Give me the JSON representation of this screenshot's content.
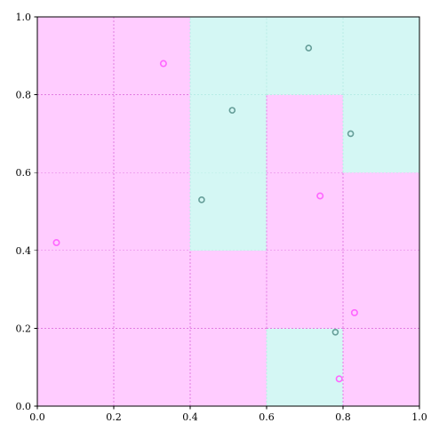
{
  "chart_data": {
    "type": "heatmap",
    "title": "",
    "xlabel": "",
    "ylabel": "",
    "xlim": [
      0,
      1
    ],
    "ylim": [
      0,
      1
    ],
    "x_ticks": [
      "0.0",
      "0.2",
      "0.4",
      "0.6",
      "0.8",
      "1.0"
    ],
    "y_ticks": [
      "0.0",
      "0.2",
      "0.4",
      "0.6",
      "0.8",
      "1.0"
    ],
    "grid": true,
    "colors": {
      "class_a_fill": "#ffccff",
      "class_b_fill": "#d4f7f4",
      "class_a_point": "#ff66ff",
      "class_b_point": "#669e99",
      "grid_a": "#e27ce2",
      "grid_b": "#b8ece6"
    },
    "cells": [
      {
        "x0": 0.0,
        "x1": 0.4,
        "y0": 0.0,
        "y1": 1.0,
        "class": "a"
      },
      {
        "x0": 0.4,
        "x1": 0.6,
        "y0": 0.0,
        "y1": 0.4,
        "class": "a"
      },
      {
        "x0": 0.4,
        "x1": 0.6,
        "y0": 0.4,
        "y1": 1.0,
        "class": "b"
      },
      {
        "x0": 0.6,
        "x1": 0.8,
        "y0": 0.0,
        "y1": 0.2,
        "class": "b"
      },
      {
        "x0": 0.6,
        "x1": 0.8,
        "y0": 0.2,
        "y1": 0.8,
        "class": "a"
      },
      {
        "x0": 0.6,
        "x1": 0.8,
        "y0": 0.8,
        "y1": 1.0,
        "class": "b"
      },
      {
        "x0": 0.8,
        "x1": 1.0,
        "y0": 0.0,
        "y1": 0.6,
        "class": "a"
      },
      {
        "x0": 0.8,
        "x1": 1.0,
        "y0": 0.6,
        "y1": 1.0,
        "class": "b"
      }
    ],
    "points": [
      {
        "x": 0.05,
        "y": 0.42,
        "class": "a"
      },
      {
        "x": 0.33,
        "y": 0.88,
        "class": "a"
      },
      {
        "x": 0.74,
        "y": 0.54,
        "class": "a"
      },
      {
        "x": 0.83,
        "y": 0.24,
        "class": "a"
      },
      {
        "x": 0.79,
        "y": 0.07,
        "class": "a"
      },
      {
        "x": 0.43,
        "y": 0.53,
        "class": "b"
      },
      {
        "x": 0.51,
        "y": 0.76,
        "class": "b"
      },
      {
        "x": 0.71,
        "y": 0.92,
        "class": "b"
      },
      {
        "x": 0.82,
        "y": 0.7,
        "class": "b"
      },
      {
        "x": 0.78,
        "y": 0.19,
        "class": "b"
      }
    ]
  }
}
